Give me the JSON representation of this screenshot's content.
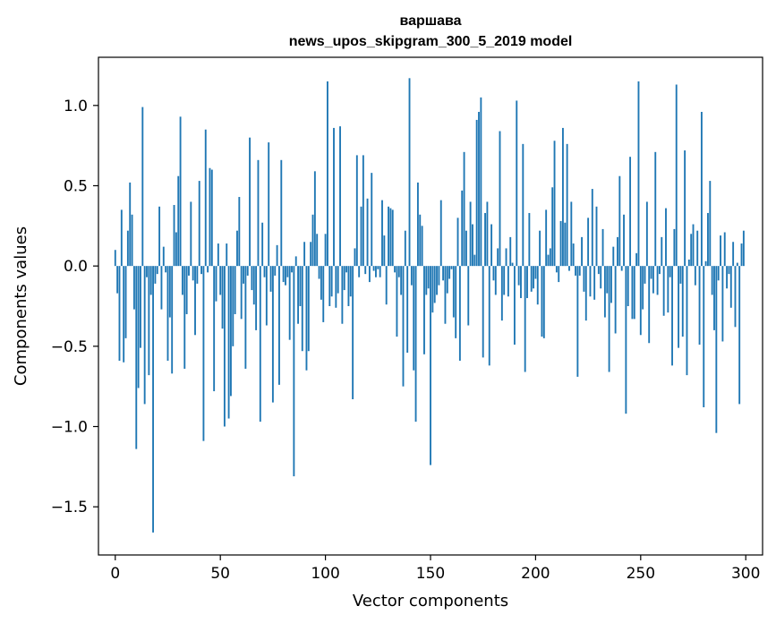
{
  "chart_data": {
    "type": "bar",
    "title": "варшава",
    "subtitle": "news_upos_skipgram_300_5_2019 model",
    "xlabel": "Vector components",
    "ylabel": "Components values",
    "xlim": [
      -8,
      308
    ],
    "ylim": [
      -1.8,
      1.3
    ],
    "xticks": [
      0,
      50,
      100,
      150,
      200,
      250,
      300
    ],
    "yticks": [
      -1.5,
      -1.0,
      -0.5,
      0.0,
      0.5,
      1.0
    ],
    "xtick_labels": [
      "0",
      "50",
      "100",
      "150",
      "200",
      "250",
      "300"
    ],
    "ytick_labels": [
      "−1.5",
      "−1.0",
      "−0.5",
      "0.0",
      "0.5",
      "1.0"
    ],
    "grid": false,
    "bar_color": "#1f77b4",
    "x": "indices 0..299",
    "values": [
      0.1,
      -0.17,
      -0.59,
      0.35,
      -0.6,
      -0.45,
      0.22,
      0.52,
      0.32,
      -0.27,
      -1.14,
      -0.76,
      -0.51,
      0.99,
      -0.86,
      -0.07,
      -0.68,
      -0.18,
      -1.66,
      -0.11,
      -0.05,
      0.37,
      -0.27,
      0.12,
      -0.04,
      -0.59,
      -0.32,
      -0.67,
      0.38,
      0.21,
      0.56,
      0.93,
      -0.18,
      -0.64,
      -0.3,
      -0.06,
      0.4,
      -0.09,
      -0.43,
      -0.11,
      0.53,
      -0.05,
      -1.09,
      0.85,
      -0.04,
      0.61,
      0.6,
      -0.78,
      -0.22,
      0.14,
      -0.18,
      -0.39,
      -1.0,
      0.14,
      -0.95,
      -0.81,
      -0.5,
      -0.3,
      0.22,
      0.43,
      -0.33,
      -0.11,
      -0.64,
      -0.06,
      0.8,
      -0.15,
      -0.24,
      -0.4,
      0.66,
      -0.97,
      0.27,
      -0.07,
      -0.37,
      0.77,
      -0.16,
      -0.85,
      -0.06,
      0.13,
      -0.74,
      0.66,
      -0.1,
      -0.12,
      -0.07,
      -0.46,
      -0.04,
      -1.31,
      0.06,
      -0.36,
      -0.25,
      -0.53,
      0.15,
      -0.65,
      -0.53,
      0.15,
      0.32,
      0.59,
      0.2,
      -0.08,
      -0.21,
      -0.35,
      0.2,
      1.15,
      -0.25,
      -0.19,
      0.86,
      -0.26,
      -0.17,
      0.87,
      -0.36,
      -0.15,
      -0.04,
      -0.25,
      -0.19,
      -0.83,
      0.11,
      0.69,
      -0.07,
      0.37,
      0.69,
      -0.05,
      0.42,
      -0.1,
      0.58,
      -0.03,
      -0.07,
      -0.02,
      -0.07,
      0.41,
      0.19,
      -0.24,
      0.37,
      0.36,
      0.35,
      -0.04,
      -0.44,
      -0.07,
      -0.18,
      -0.75,
      0.22,
      -0.54,
      1.17,
      -0.12,
      -0.65,
      -0.97,
      0.52,
      0.32,
      0.25,
      -0.55,
      -0.18,
      -0.14,
      -1.24,
      -0.29,
      -0.23,
      -0.18,
      -0.12,
      0.41,
      -0.09,
      -0.36,
      -0.17,
      -0.08,
      -0.02,
      -0.32,
      -0.45,
      0.3,
      -0.59,
      0.47,
      0.71,
      0.22,
      -0.37,
      0.4,
      0.26,
      0.07,
      0.91,
      0.96,
      1.05,
      -0.57,
      0.33,
      0.4,
      -0.62,
      0.26,
      -0.09,
      -0.18,
      0.11,
      0.84,
      -0.34,
      -0.18,
      0.11,
      -0.19,
      0.18,
      0.02,
      -0.49,
      1.03,
      -0.12,
      -0.2,
      0.76,
      -0.66,
      -0.2,
      0.33,
      -0.16,
      -0.14,
      -0.08,
      -0.24,
      0.22,
      -0.44,
      -0.45,
      0.35,
      0.07,
      0.11,
      0.49,
      0.78,
      -0.04,
      -0.1,
      0.28,
      0.86,
      0.27,
      0.76,
      -0.03,
      0.4,
      0.14,
      -0.06,
      -0.69,
      -0.06,
      0.18,
      -0.16,
      -0.34,
      0.3,
      -0.19,
      0.48,
      -0.21,
      0.37,
      -0.05,
      -0.14,
      0.23,
      -0.32,
      -0.17,
      -0.66,
      -0.23,
      0.12,
      -0.42,
      0.18,
      0.56,
      -0.03,
      0.32,
      -0.92,
      -0.25,
      0.68,
      -0.33,
      -0.33,
      0.08,
      1.15,
      -0.43,
      -0.27,
      -0.11,
      0.4,
      -0.48,
      -0.08,
      -0.17,
      0.71,
      -0.18,
      -0.05,
      0.18,
      -0.31,
      0.36,
      -0.29,
      -0.07,
      -0.62,
      0.23,
      1.13,
      -0.51,
      -0.11,
      -0.44,
      0.72,
      -0.68,
      0.04,
      0.2,
      0.26,
      -0.12,
      0.22,
      -0.49,
      0.96,
      -0.88,
      0.03,
      0.33,
      0.53,
      -0.18,
      -0.4,
      -1.04,
      -0.09,
      0.19,
      -0.47,
      0.21,
      -0.14,
      -0.05,
      -0.26,
      0.15,
      -0.38,
      0.02,
      -0.86,
      0.14,
      0.22
    ]
  }
}
